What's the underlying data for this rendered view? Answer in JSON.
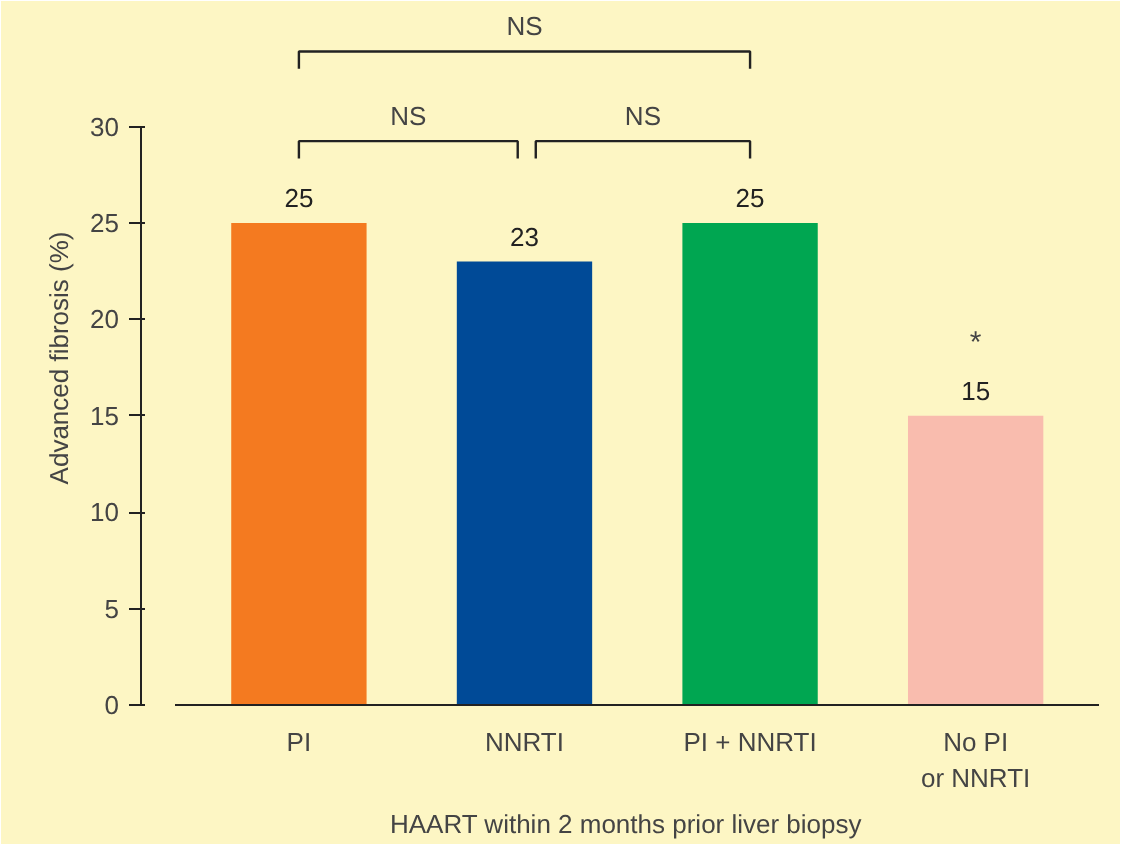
{
  "chart_data": {
    "type": "bar",
    "xlabel": "HAART within 2 months prior liver biopsy",
    "ylabel": "Advanced fibrosis (%)",
    "categories": [
      "PI",
      "NNRTI",
      "PI + NNRTI",
      "No PI\nor NNRTI"
    ],
    "values": [
      25,
      23,
      25,
      15
    ],
    "colors": [
      "#f47a20",
      "#004a97",
      "#00a651",
      "#f9bcae"
    ],
    "ylim": [
      0,
      30
    ],
    "yticks": [
      0,
      5,
      10,
      15,
      20,
      25,
      30
    ],
    "grid": false,
    "data_labels": true,
    "annotations": [
      "NS",
      "NS",
      "NS",
      "*"
    ]
  }
}
